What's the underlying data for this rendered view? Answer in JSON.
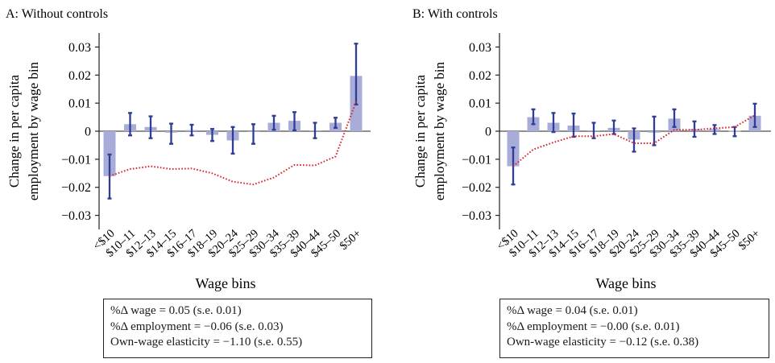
{
  "chart_data": [
    {
      "type": "bar",
      "title": "A: Without controls",
      "xlabel": "Wage bins",
      "ylabel_line1": "Change in per capita",
      "ylabel_line2": "employment by wage bin",
      "ylim": [
        -0.035,
        0.035
      ],
      "yticks": [
        0.03,
        0.02,
        0.01,
        0,
        -0.01,
        -0.02,
        -0.03
      ],
      "ytick_labels": [
        "0.03",
        "0.02",
        "0.01",
        "0",
        "−0.01",
        "−0.02",
        "−0.03"
      ],
      "categories": [
        "<$10",
        "$10–11",
        "$12–13",
        "$14–15",
        "$16–17",
        "$18–19",
        "$20–24",
        "$25–29",
        "$30–34",
        "$35–39",
        "$40–44",
        "$45–50",
        "$50+"
      ],
      "bar_values": [
        -0.016,
        0.0025,
        0.0015,
        -0.0005,
        0.0004,
        -0.0013,
        -0.0033,
        -0.0003,
        0.003,
        0.0037,
        0.0003,
        0.003,
        0.0197
      ],
      "ci_low": [
        -0.024,
        -0.0015,
        -0.0025,
        -0.0045,
        -0.0015,
        -0.0035,
        -0.008,
        -0.0045,
        0.0005,
        0.0003,
        -0.0025,
        0.0012,
        0.0095
      ],
      "ci_high": [
        -0.0083,
        0.0065,
        0.0053,
        0.0027,
        0.0023,
        0.0008,
        0.0015,
        0.0025,
        0.0055,
        0.0068,
        0.003,
        0.0048,
        0.0312
      ],
      "line_values": [
        -0.016,
        -0.0135,
        -0.0125,
        -0.0135,
        -0.0133,
        -0.015,
        -0.018,
        -0.019,
        -0.0165,
        -0.012,
        -0.0122,
        -0.009,
        0.0105
      ],
      "bar_color": "#a7acd8",
      "errorbar_color": "#2f3d94",
      "line_color": "#d6262c",
      "stats": [
        "%Δ  wage = 0.05 (s.e.  0.01)",
        "%Δ  employment = −0.06 (s.e.  0.03)",
        "Own-wage elasticity =  −1.10 (s.e.  0.55)"
      ]
    },
    {
      "type": "bar",
      "title": "B: With controls",
      "xlabel": "Wage bins",
      "ylabel_line1": "Change in per capita",
      "ylabel_line2": "employment by wage bin",
      "ylim": [
        -0.035,
        0.035
      ],
      "yticks": [
        0.03,
        0.02,
        0.01,
        0,
        -0.01,
        -0.02,
        -0.03
      ],
      "ytick_labels": [
        "0.03",
        "0.02",
        "0.01",
        "0",
        "−0.01",
        "−0.02",
        "−0.03"
      ],
      "categories": [
        "<$10",
        "$10–11",
        "$12–13",
        "$14–15",
        "$16–17",
        "$18–19",
        "$20–24",
        "$25–29",
        "$30–34",
        "$35–39",
        "$40–44",
        "$45–50",
        "$50+"
      ],
      "bar_values": [
        -0.0125,
        0.005,
        0.003,
        0.002,
        0.0003,
        0.0012,
        -0.003,
        -0.0005,
        0.0045,
        0.0007,
        0.0007,
        0.0001,
        0.0055
      ],
      "ci_low": [
        -0.019,
        0.0025,
        -0.0003,
        -0.002,
        -0.0025,
        -0.001,
        -0.0073,
        -0.005,
        0.0015,
        -0.002,
        -0.001,
        -0.0018,
        0.0015
      ],
      "ci_high": [
        -0.0058,
        0.0078,
        0.0065,
        0.0063,
        0.003,
        0.0038,
        0.001,
        0.0052,
        0.0078,
        0.0035,
        0.0022,
        0.0015,
        0.0098
      ],
      "line_values": [
        -0.0125,
        -0.0065,
        -0.004,
        -0.0018,
        -0.0018,
        -0.001,
        -0.0043,
        -0.0043,
        0.0005,
        0.0005,
        0.001,
        0.0015,
        0.0057
      ],
      "bar_color": "#a7acd8",
      "errorbar_color": "#2f3d94",
      "line_color": "#d6262c",
      "stats": [
        "%Δ  wage = 0.04 (s.e.  0.01)",
        "%Δ  employment = −0.00 (s.e.  0.01)",
        "Own-wage elasticity =  −0.12 (s.e.  0.38)"
      ]
    }
  ]
}
